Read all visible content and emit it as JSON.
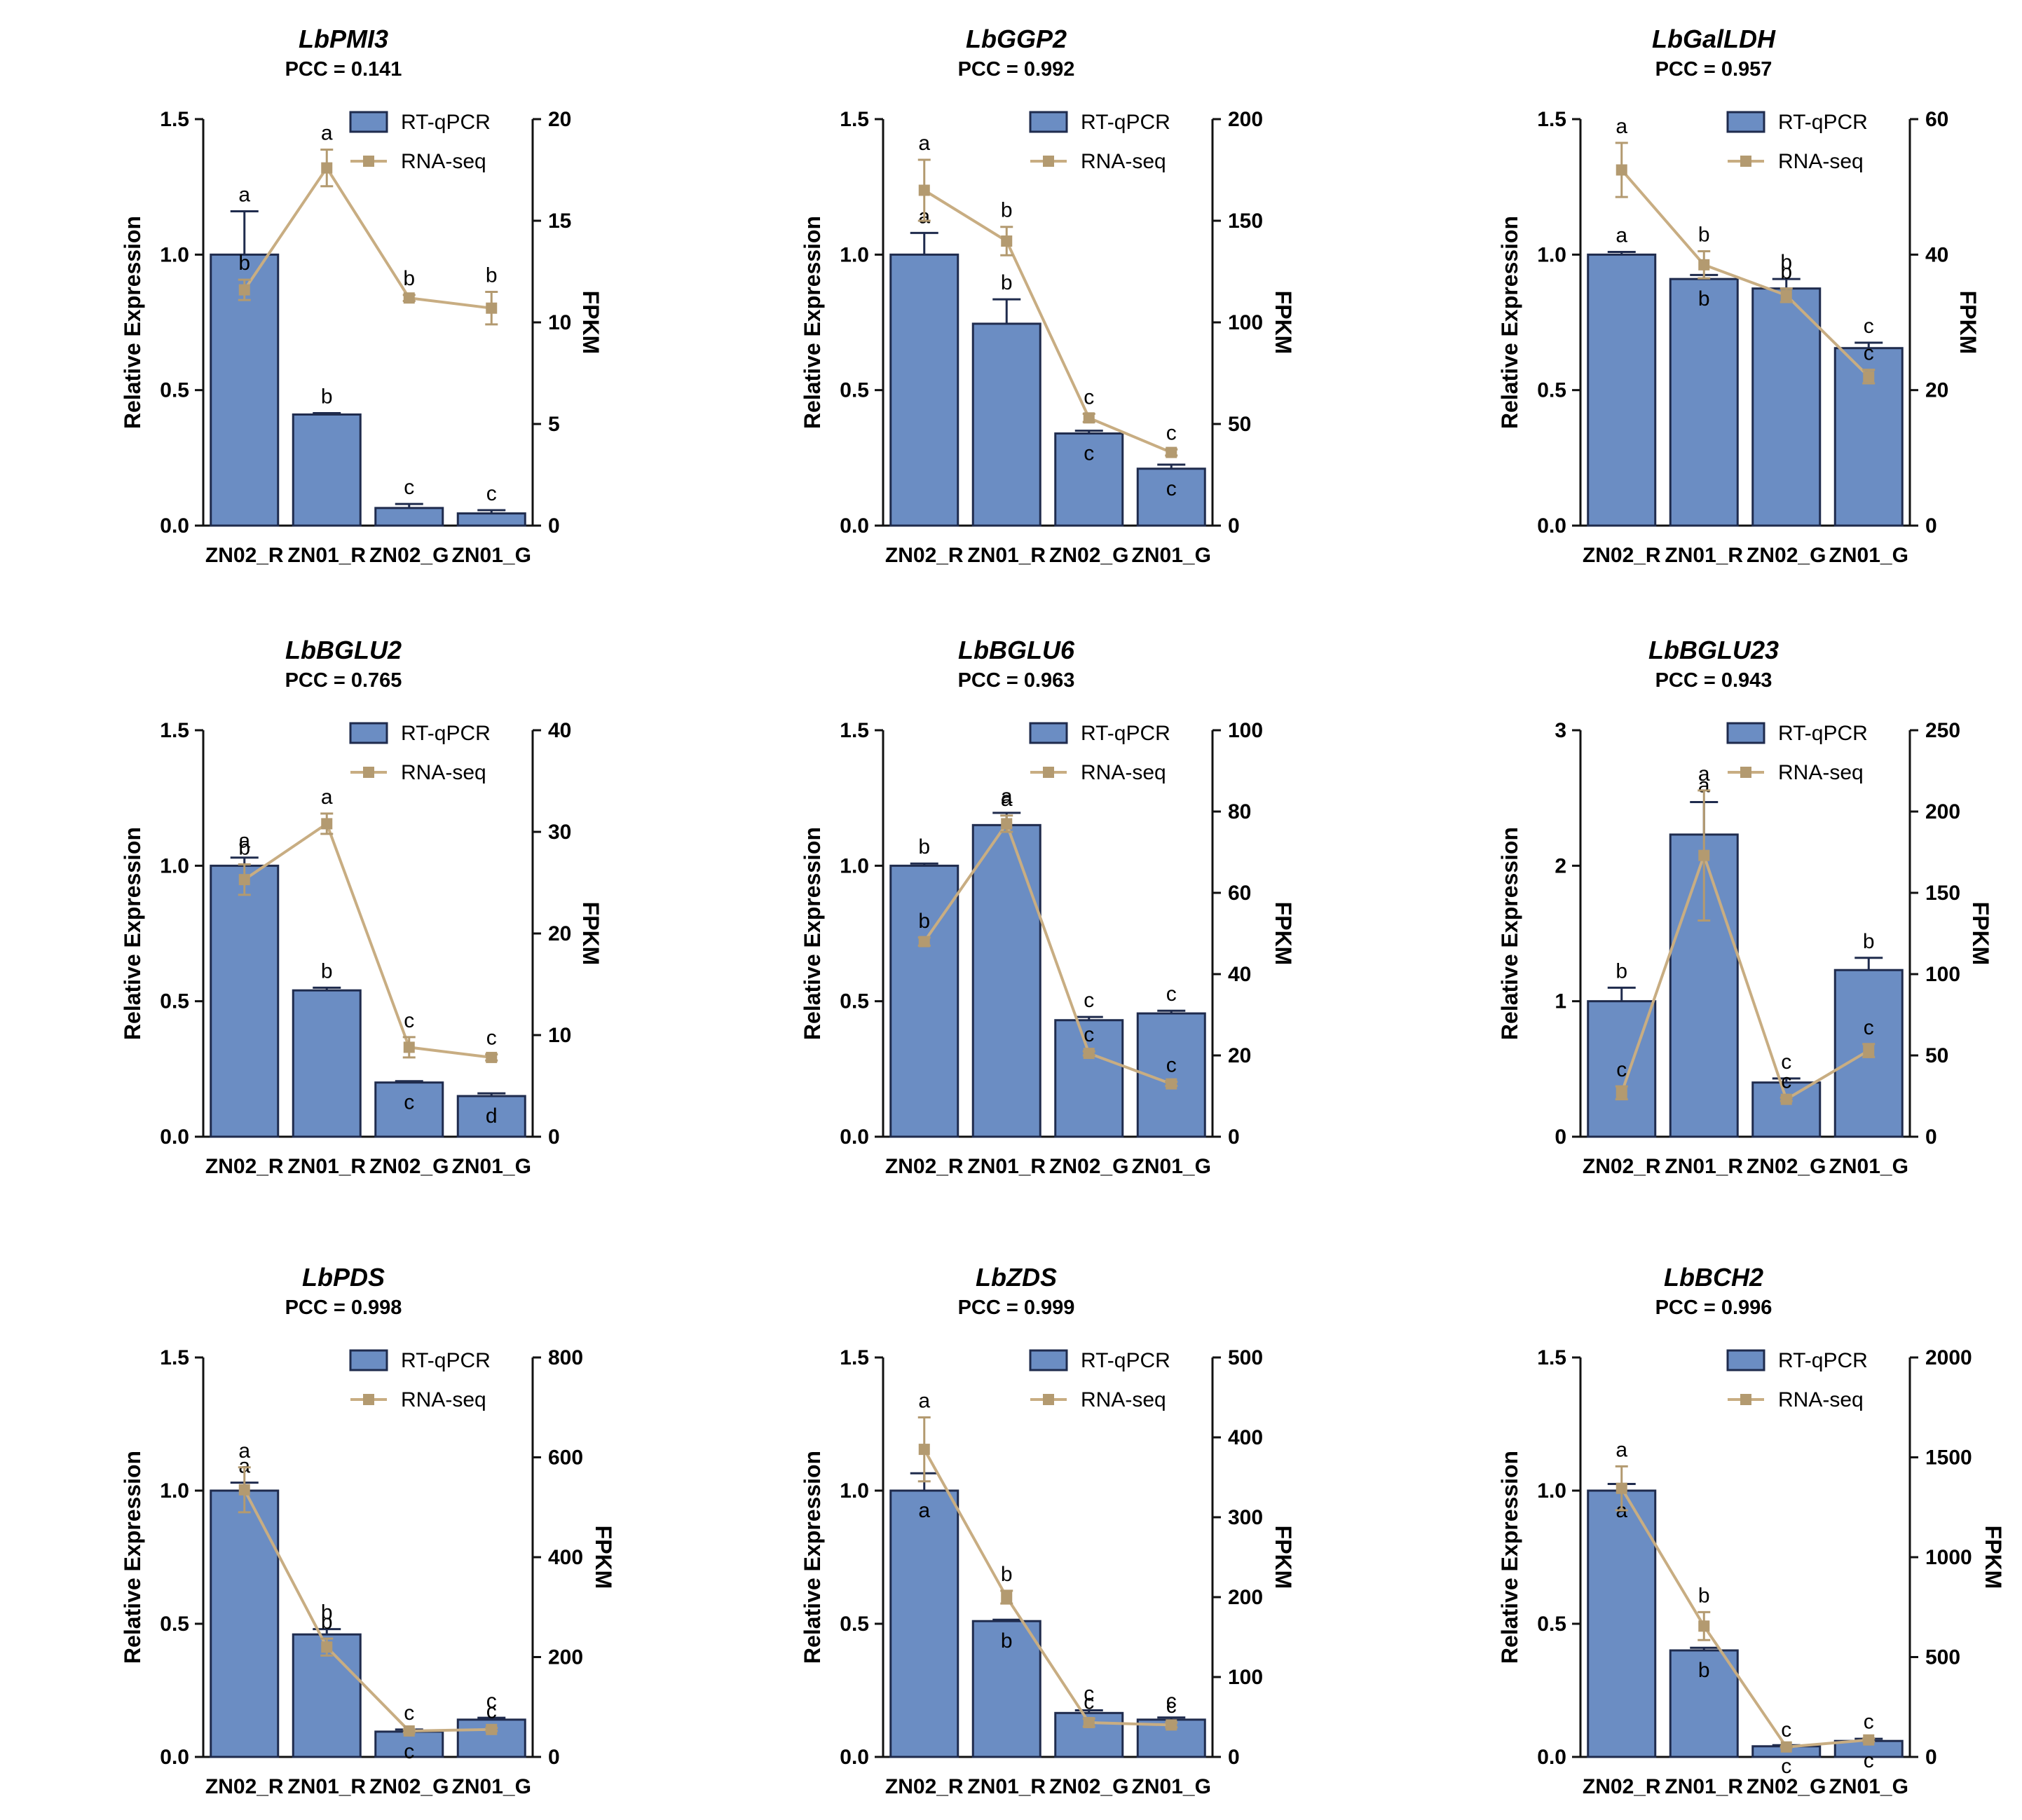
{
  "colors": {
    "bar_fill": "#6b8dc3",
    "bar_stroke": "#1f2b4d",
    "line": "#c8ad82",
    "marker": "#b39a70",
    "axis": "#111111"
  },
  "legend": {
    "bar_label": "RT-qPCR",
    "line_label": "RNA-seq"
  },
  "chart_data": [
    {
      "type": "bar+line",
      "title": "LbPMI3",
      "subtitle": "PCC = 0.141",
      "categories": [
        "ZN02_R",
        "ZN01_R",
        "ZN02_G",
        "ZN01_G"
      ],
      "ylabel": "Relative Expression",
      "y2label": "FPKM",
      "ylim": [
        0,
        1.5
      ],
      "yticks": [
        "0.0",
        "0.5",
        "1.0",
        "1.5"
      ],
      "y2lim": [
        0,
        20
      ],
      "y2ticks": [
        "0",
        "5",
        "10",
        "15",
        "20"
      ],
      "series": [
        {
          "name": "RT-qPCR",
          "axis": "left",
          "values": [
            1.0,
            0.41,
            0.065,
            0.045
          ],
          "errors": [
            0.16,
            0.005,
            0.015,
            0.012
          ],
          "letters": [
            "a",
            "b",
            "c",
            "c"
          ]
        },
        {
          "name": "RNA-seq",
          "axis": "right",
          "values": [
            11.6,
            17.6,
            11.2,
            10.7
          ],
          "errors": [
            0.5,
            0.9,
            0.15,
            0.8
          ],
          "letters": [
            "b",
            "a",
            "b",
            "b"
          ]
        }
      ]
    },
    {
      "type": "bar+line",
      "title": "LbGGP2",
      "subtitle": "PCC = 0.992",
      "categories": [
        "ZN02_R",
        "ZN01_R",
        "ZN02_G",
        "ZN01_G"
      ],
      "ylabel": "Relative Expression",
      "y2label": "FPKM",
      "ylim": [
        0,
        1.5
      ],
      "yticks": [
        "0.0",
        "0.5",
        "1.0",
        "1.5"
      ],
      "y2lim": [
        0,
        200
      ],
      "y2ticks": [
        "0",
        "50",
        "100",
        "150",
        "200"
      ],
      "series": [
        {
          "name": "RT-qPCR",
          "axis": "left",
          "values": [
            1.0,
            0.745,
            0.34,
            0.21
          ],
          "errors": [
            0.08,
            0.09,
            0.01,
            0.015
          ],
          "letters": [
            "a",
            "b",
            "c",
            "c"
          ]
        },
        {
          "name": "RNA-seq",
          "axis": "right",
          "values": [
            165,
            140,
            53,
            36
          ],
          "errors": [
            15,
            7,
            2,
            1.5
          ],
          "letters": [
            "a",
            "b",
            "c",
            "c"
          ]
        }
      ]
    },
    {
      "type": "bar+line",
      "title": "LbGalLDH",
      "subtitle": "PCC = 0.957",
      "categories": [
        "ZN02_R",
        "ZN01_R",
        "ZN02_G",
        "ZN01_G"
      ],
      "ylabel": "Relative Expression",
      "y2label": "FPKM",
      "ylim": [
        0,
        1.5
      ],
      "yticks": [
        "0.0",
        "0.5",
        "1.0",
        "1.5"
      ],
      "y2lim": [
        0,
        60
      ],
      "y2ticks": [
        "0",
        "20",
        "40",
        "60"
      ],
      "series": [
        {
          "name": "RT-qPCR",
          "axis": "left",
          "values": [
            1.0,
            0.91,
            0.875,
            0.655
          ],
          "errors": [
            0.01,
            0.015,
            0.035,
            0.02
          ],
          "letters": [
            "a",
            "b",
            "b",
            "c"
          ]
        },
        {
          "name": "RNA-seq",
          "axis": "right",
          "values": [
            52.5,
            38.5,
            34,
            22
          ],
          "errors": [
            4,
            2,
            1,
            1
          ],
          "letters": [
            "a",
            "b",
            "b",
            "c"
          ]
        }
      ]
    },
    {
      "type": "bar+line",
      "title": "LbBGLU2",
      "subtitle": "PCC = 0.765",
      "categories": [
        "ZN02_R",
        "ZN01_R",
        "ZN02_G",
        "ZN01_G"
      ],
      "ylabel": "Relative Expression",
      "y2label": "FPKM",
      "ylim": [
        0,
        1.5
      ],
      "yticks": [
        "0.0",
        "0.5",
        "1.0",
        "1.5"
      ],
      "y2lim": [
        0,
        40
      ],
      "y2ticks": [
        "0",
        "10",
        "20",
        "30",
        "40"
      ],
      "series": [
        {
          "name": "RT-qPCR",
          "axis": "left",
          "values": [
            1.0,
            0.54,
            0.2,
            0.15
          ],
          "errors": [
            0.03,
            0.01,
            0.005,
            0.01
          ],
          "letters": [
            "a",
            "b",
            "c",
            "d"
          ]
        },
        {
          "name": "RNA-seq",
          "axis": "right",
          "values": [
            25.3,
            30.8,
            8.8,
            7.8
          ],
          "errors": [
            1.5,
            1,
            1,
            0.3
          ],
          "letters": [
            "b",
            "a",
            "c",
            "c"
          ]
        }
      ]
    },
    {
      "type": "bar+line",
      "title": "LbBGLU6",
      "subtitle": "PCC = 0.963",
      "categories": [
        "ZN02_R",
        "ZN01_R",
        "ZN02_G",
        "ZN01_G"
      ],
      "ylabel": "Relative Expression",
      "y2label": "FPKM",
      "ylim": [
        0,
        1.5
      ],
      "yticks": [
        "0.0",
        "0.5",
        "1.0",
        "1.5"
      ],
      "y2lim": [
        0,
        100
      ],
      "y2ticks": [
        "0",
        "20",
        "40",
        "60",
        "80",
        "100"
      ],
      "series": [
        {
          "name": "RT-qPCR",
          "axis": "left",
          "values": [
            1.0,
            1.15,
            0.43,
            0.455
          ],
          "errors": [
            0.008,
            0.045,
            0.012,
            0.01
          ],
          "letters": [
            "b",
            "a",
            "c",
            "c"
          ]
        },
        {
          "name": "RNA-seq",
          "axis": "right",
          "values": [
            48,
            77,
            20.5,
            13
          ],
          "errors": [
            1,
            2,
            0.5,
            0.5
          ],
          "letters": [
            "b",
            "a",
            "c",
            "c"
          ]
        }
      ]
    },
    {
      "type": "bar+line",
      "title": "LbBGLU23",
      "subtitle": "PCC = 0.943",
      "categories": [
        "ZN02_R",
        "ZN01_R",
        "ZN02_G",
        "ZN01_G"
      ],
      "ylabel": "Relative Expression",
      "y2label": "FPKM",
      "ylim": [
        0,
        3
      ],
      "yticks": [
        "0",
        "1",
        "2",
        "3"
      ],
      "y2lim": [
        0,
        250
      ],
      "y2ticks": [
        "0",
        "50",
        "100",
        "150",
        "200",
        "250"
      ],
      "series": [
        {
          "name": "RT-qPCR",
          "axis": "left",
          "values": [
            1.0,
            2.23,
            0.4,
            1.23
          ],
          "errors": [
            0.1,
            0.24,
            0.03,
            0.09
          ],
          "letters": [
            "b",
            "a",
            "c",
            "b"
          ]
        },
        {
          "name": "RNA-seq",
          "axis": "right",
          "values": [
            27,
            173,
            23,
            53
          ],
          "errors": [
            4,
            40,
            1,
            4
          ],
          "letters": [
            "c",
            "a",
            "c",
            "c"
          ]
        }
      ]
    },
    {
      "type": "bar+line",
      "title": "LbPDS",
      "subtitle": "PCC = 0.998",
      "categories": [
        "ZN02_R",
        "ZN01_R",
        "ZN02_G",
        "ZN01_G"
      ],
      "ylabel": "Relative Expression",
      "y2label": "FPKM",
      "ylim": [
        0,
        1.5
      ],
      "yticks": [
        "0.0",
        "0.5",
        "1.0",
        "1.5"
      ],
      "y2lim": [
        0,
        800
      ],
      "y2ticks": [
        "0",
        "200",
        "400",
        "600",
        "800"
      ],
      "series": [
        {
          "name": "RT-qPCR",
          "axis": "left",
          "values": [
            1.0,
            0.46,
            0.095,
            0.14
          ],
          "errors": [
            0.03,
            0.02,
            0.008,
            0.007
          ],
          "letters": [
            "a",
            "b",
            "c",
            "c"
          ]
        },
        {
          "name": "RNA-seq",
          "axis": "right",
          "values": [
            535,
            220,
            52,
            55
          ],
          "errors": [
            45,
            17,
            3,
            3
          ],
          "letters": [
            "a",
            "b",
            "c",
            "c"
          ]
        }
      ]
    },
    {
      "type": "bar+line",
      "title": "LbZDS",
      "subtitle": "PCC = 0.999",
      "categories": [
        "ZN02_R",
        "ZN01_R",
        "ZN02_G",
        "ZN01_G"
      ],
      "ylabel": "Relative Expression",
      "y2label": "FPKM",
      "ylim": [
        0,
        1.5
      ],
      "yticks": [
        "0.0",
        "0.5",
        "1.0",
        "1.5"
      ],
      "y2lim": [
        0,
        500
      ],
      "y2ticks": [
        "0",
        "100",
        "200",
        "300",
        "400",
        "500"
      ],
      "series": [
        {
          "name": "RT-qPCR",
          "axis": "left",
          "values": [
            1.0,
            0.51,
            0.165,
            0.14
          ],
          "errors": [
            0.065,
            0.005,
            0.01,
            0.008
          ],
          "letters": [
            "a",
            "b",
            "c",
            "c"
          ]
        },
        {
          "name": "RNA-seq",
          "axis": "right",
          "values": [
            385,
            200,
            43,
            40
          ],
          "errors": [
            40,
            8,
            5,
            3
          ],
          "letters": [
            "a",
            "b",
            "c",
            "c"
          ]
        }
      ]
    },
    {
      "type": "bar+line",
      "title": "LbBCH2",
      "subtitle": "PCC = 0.996",
      "categories": [
        "ZN02_R",
        "ZN01_R",
        "ZN02_G",
        "ZN01_G"
      ],
      "ylabel": "Relative Expression",
      "y2label": "FPKM",
      "ylim": [
        0,
        1.5
      ],
      "yticks": [
        "0.0",
        "0.5",
        "1.0",
        "1.5"
      ],
      "y2lim": [
        0,
        2000
      ],
      "y2ticks": [
        "0",
        "500",
        "1000",
        "1500",
        "2000"
      ],
      "series": [
        {
          "name": "RT-qPCR",
          "axis": "left",
          "values": [
            1.0,
            0.4,
            0.04,
            0.06
          ],
          "errors": [
            0.025,
            0.01,
            0.004,
            0.008
          ],
          "letters": [
            "a",
            "b",
            "c",
            "c"
          ]
        },
        {
          "name": "RNA-seq",
          "axis": "right",
          "values": [
            1345,
            655,
            50,
            85
          ],
          "errors": [
            110,
            70,
            3,
            8
          ],
          "letters": [
            "a",
            "b",
            "c",
            "c"
          ]
        }
      ]
    }
  ]
}
